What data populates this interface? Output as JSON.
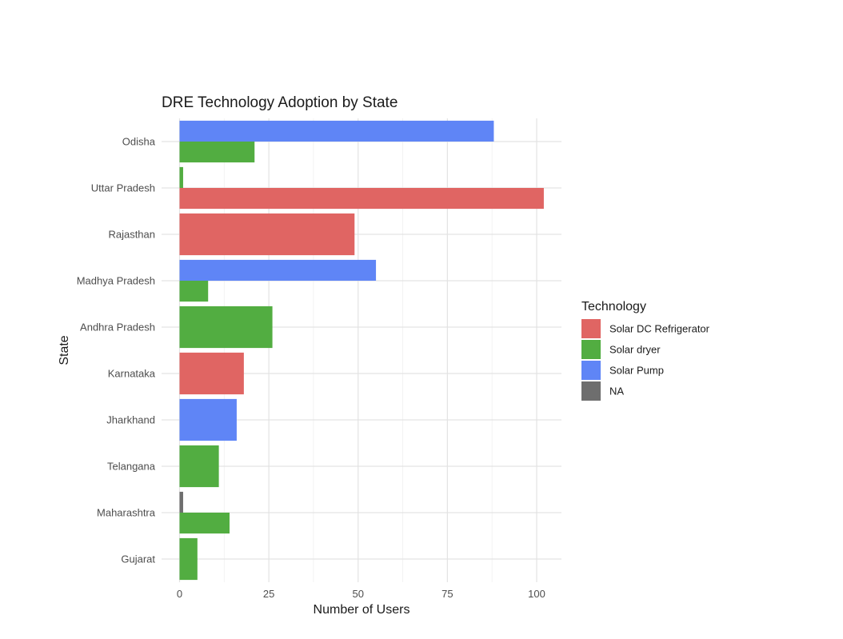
{
  "chart_data": {
    "type": "bar",
    "orientation": "horizontal",
    "position": "dodge",
    "title": "DRE Technology Adoption by State",
    "xlabel": "Number of Users",
    "ylabel": "State",
    "xlim": [
      0,
      107
    ],
    "x_ticks": [
      0,
      25,
      50,
      75,
      100
    ],
    "grid": true,
    "legend_position": "right",
    "legend_title": "Technology",
    "categories": [
      "Odisha",
      "Uttar Pradesh",
      "Rajasthan",
      "Madhya Pradesh",
      "Andhra Pradesh",
      "Karnataka",
      "Jharkhand",
      "Telangana",
      "Maharashtra",
      "Gujarat"
    ],
    "series": [
      {
        "name": "Solar DC Refrigerator",
        "color": "#E06563",
        "values": [
          null,
          102,
          49,
          null,
          null,
          18,
          null,
          null,
          null,
          null
        ]
      },
      {
        "name": "Solar dryer",
        "color": "#52AD41",
        "values": [
          21,
          1,
          null,
          8,
          26,
          null,
          null,
          11,
          14,
          5
        ]
      },
      {
        "name": "Solar Pump",
        "color": "#5F85F6",
        "values": [
          88,
          null,
          null,
          55,
          null,
          null,
          16,
          null,
          null,
          null
        ]
      },
      {
        "name": "NA",
        "color": "#6E6E6E",
        "values": [
          null,
          null,
          null,
          null,
          null,
          null,
          null,
          null,
          1,
          null
        ]
      }
    ]
  }
}
